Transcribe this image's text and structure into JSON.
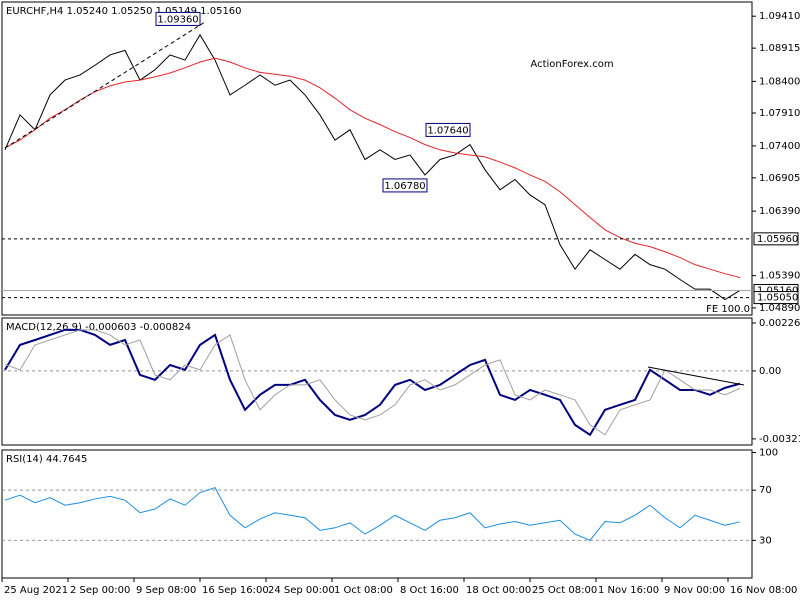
{
  "chart_data": [
    {
      "type": "line",
      "title": "EURCHF,H4 1.05240 1.05250 1.05149 1.05160",
      "watermark": "ActionForex.com",
      "fe_label": "FE 100.0",
      "time_labels": [
        "25 Aug 2021",
        "2 Sep 00:00",
        "9 Sep 08:00",
        "16 Sep 16:00",
        "24 Sep 00:00",
        "1 Oct 08:00",
        "8 Oct 16:00",
        "18 Oct 00:00",
        "25 Oct 08:00",
        "1 Nov 16:00",
        "9 Nov 00:00",
        "16 Nov 08:00"
      ],
      "ylim": [
        1.0478,
        1.0963
      ],
      "yticks": [
        {
          "value": 1.0941,
          "label": "1.09410"
        },
        {
          "value": 1.08915,
          "label": "1.08915"
        },
        {
          "value": 1.084,
          "label": "1.08400"
        },
        {
          "value": 1.0791,
          "label": "1.07910"
        },
        {
          "value": 1.074,
          "label": "1.07400"
        },
        {
          "value": 1.06905,
          "label": "1.06905"
        },
        {
          "value": 1.0639,
          "label": "1.06390"
        },
        {
          "value": 1.0539,
          "label": "1.05390"
        },
        {
          "value": 1.0489,
          "label": "1.04890"
        }
      ],
      "series": [
        {
          "color": "#000000",
          "values": [
            1.0734,
            1.0788,
            1.0765,
            1.0819,
            1.0842,
            1.085,
            1.0865,
            1.0881,
            1.0888,
            1.0842,
            1.0858,
            1.0881,
            1.0873,
            1.0912,
            1.0873,
            1.0819,
            1.0834,
            1.085,
            1.0834,
            1.0842,
            1.0819,
            1.0788,
            1.0749,
            1.0765,
            1.0719,
            1.0734,
            1.0719,
            1.0726,
            1.0695,
            1.0719,
            1.0726,
            1.0742,
            1.0703,
            1.0672,
            1.0688,
            1.0664,
            1.0649,
            1.0587,
            1.0549,
            1.0579,
            1.0564,
            1.0549,
            1.0572,
            1.0556,
            1.0549,
            1.0533,
            1.0518,
            1.0518,
            1.0502,
            1.0516
          ]
        },
        {
          "color": "#e0262a",
          "values": [
            1.0737,
            1.0749,
            1.0765,
            1.0783,
            1.0796,
            1.0811,
            1.0824,
            1.0833,
            1.0839,
            1.0842,
            1.0847,
            1.0853,
            1.0861,
            1.087,
            1.0876,
            1.087,
            1.0861,
            1.0854,
            1.0851,
            1.0848,
            1.0842,
            1.083,
            1.0814,
            1.0796,
            1.0783,
            1.0773,
            1.0762,
            1.0753,
            1.0742,
            1.0734,
            1.0729,
            1.0726,
            1.0723,
            1.0715,
            1.0706,
            1.0695,
            1.0685,
            1.0669,
            1.0649,
            1.0629,
            1.061,
            1.0598,
            1.0589,
            1.0584,
            1.0576,
            1.0567,
            1.0556,
            1.0549,
            1.0542,
            1.0536
          ]
        }
      ],
      "levels": [
        {
          "value": 1.0596,
          "label": "1.05960"
        },
        {
          "value": 1.0516,
          "label": "1.05160"
        },
        {
          "value": 1.0505,
          "label": "1.05050"
        }
      ],
      "annotations": [
        {
          "value": 1.0936,
          "label": "1.09360"
        },
        {
          "value": 1.0764,
          "label": "1.07640"
        },
        {
          "value": 1.0678,
          "label": "1.06780"
        }
      ]
    },
    {
      "type": "line",
      "title": "MACD(12,26,9) -0.000603 -0.000824",
      "ylim": [
        -0.0035,
        0.0025
      ],
      "yticks": [
        0.002264,
        {
          "value": 0,
          "label": "0.00"
        },
        -0.003211
      ],
      "series": [
        {
          "color": "#000080",
          "values": [
            5e-05,
            0.00123,
            0.00146,
            0.0017,
            0.00194,
            0.00194,
            0.0017,
            0.00123,
            0.00146,
            -0.00019,
            -0.00042,
            0.00028,
            5e-05,
            0.00123,
            0.0017,
            -0.00042,
            -0.00184,
            -0.00113,
            -0.00066,
            -0.00066,
            -0.00042,
            -0.00137,
            -0.00208,
            -0.00231,
            -0.00208,
            -0.0016,
            -0.00066,
            -0.00042,
            -0.0009,
            -0.00066,
            -0.00019,
            0.00028,
            0.00052,
            -0.00113,
            -0.00137,
            -0.0009,
            -0.00113,
            -0.00137,
            -0.00255,
            -0.00302,
            -0.00184,
            -0.0016,
            -0.00137,
            5e-05,
            -0.00042,
            -0.0009,
            -0.0009,
            -0.00113,
            -0.0008,
            -0.000603
          ]
        },
        {
          "color": "#a0a0a0",
          "values": [
            0.0003,
            5e-05,
            0.00123,
            0.00146,
            0.0017,
            0.00194,
            0.00194,
            0.0017,
            0.00123,
            0.00146,
            -0.00019,
            -0.00042,
            0.00028,
            5e-05,
            0.00123,
            0.0017,
            -0.00042,
            -0.00184,
            -0.00113,
            -0.00066,
            -0.00066,
            -0.00042,
            -0.00137,
            -0.00208,
            -0.00231,
            -0.00208,
            -0.0016,
            -0.00066,
            -0.00042,
            -0.0009,
            -0.00066,
            -0.00019,
            0.00028,
            0.00052,
            -0.00113,
            -0.00137,
            -0.0009,
            -0.00113,
            -0.00137,
            -0.00255,
            -0.00302,
            -0.00184,
            -0.0016,
            -0.00137,
            5e-05,
            -0.00042,
            -0.0009,
            -0.0009,
            -0.00113,
            -0.000824
          ]
        }
      ]
    },
    {
      "type": "line",
      "title": "RSI(14) 44.7645",
      "ylim": [
        0,
        102
      ],
      "yticks": [
        100,
        70,
        30
      ],
      "series": [
        {
          "color": "#1e8fe0",
          "values": [
            62,
            66,
            60,
            64,
            58,
            60,
            63,
            65,
            62,
            52,
            55,
            63,
            58,
            68,
            72,
            50,
            40,
            47,
            52,
            50,
            48,
            38,
            40,
            44,
            35,
            42,
            50,
            44,
            38,
            46,
            48,
            52,
            40,
            43,
            45,
            42,
            44,
            46,
            35,
            30,
            45,
            44,
            50,
            58,
            48,
            40,
            50,
            46,
            42,
            44.7645
          ]
        }
      ]
    }
  ]
}
